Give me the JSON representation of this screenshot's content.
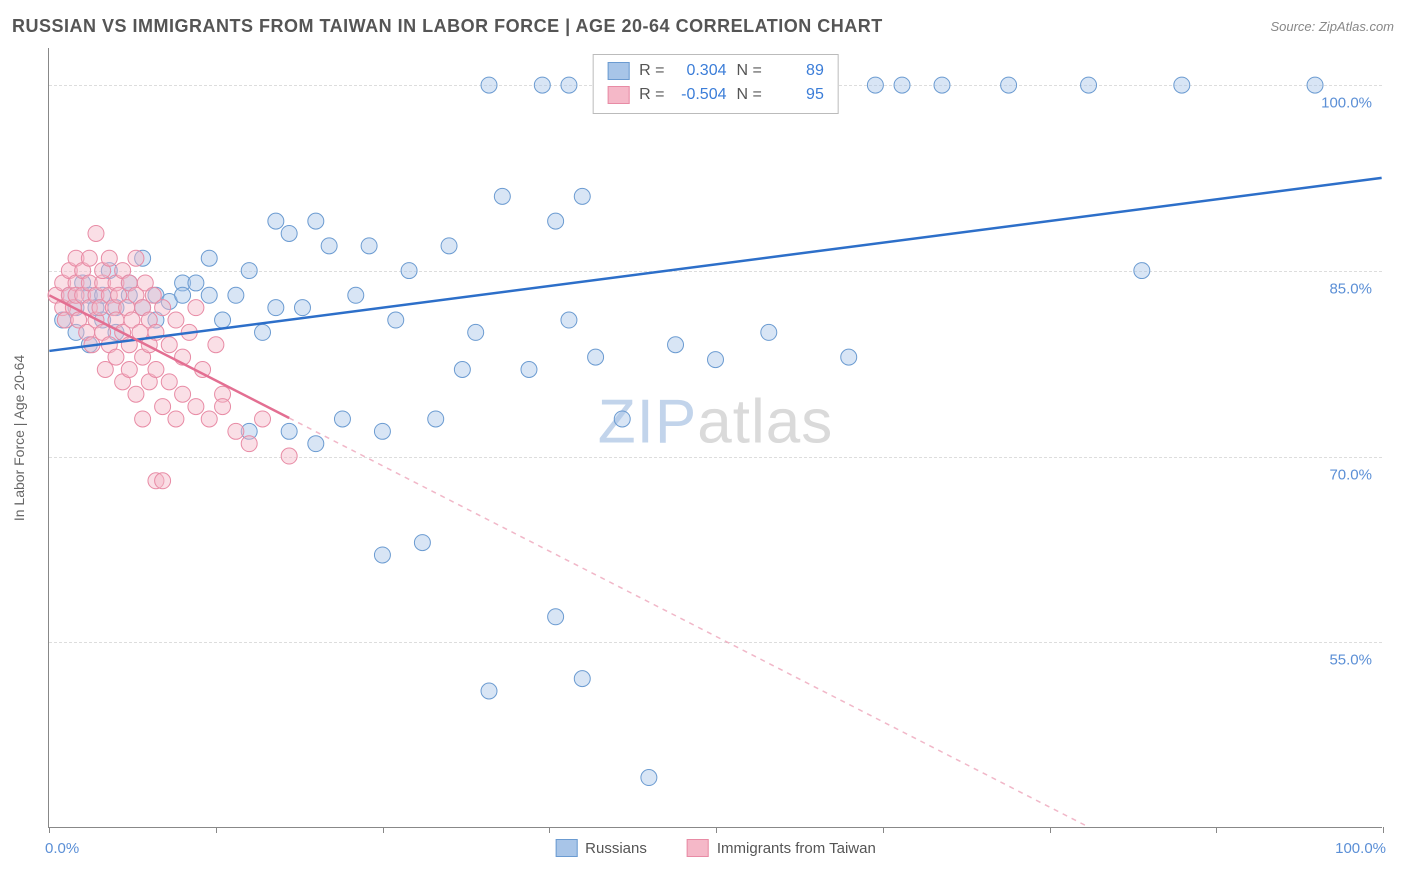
{
  "title": "RUSSIAN VS IMMIGRANTS FROM TAIWAN IN LABOR FORCE | AGE 20-64 CORRELATION CHART",
  "source": "Source: ZipAtlas.com",
  "watermark_zip": "ZIP",
  "watermark_atlas": "atlas",
  "y_axis_title": "In Labor Force | Age 20-64",
  "chart": {
    "type": "scatter-with-regression",
    "background_color": "#ffffff",
    "grid_color": "#dddddd",
    "axis_color": "#888888",
    "xlim": [
      0,
      100
    ],
    "ylim": [
      40,
      103
    ],
    "x_ticks": [
      0,
      12.5,
      25,
      37.5,
      50,
      62.5,
      75,
      87.5,
      100
    ],
    "x_tick_labels_shown": {
      "0": "0.0%",
      "100": "100.0%"
    },
    "y_gridlines": [
      55,
      70,
      85,
      100
    ],
    "y_tick_labels": {
      "55": "55.0%",
      "70": "70.0%",
      "85": "85.0%",
      "100": "100.0%"
    },
    "marker_radius": 8,
    "marker_opacity": 0.45,
    "line_width": 2.5,
    "series": [
      {
        "name": "Russians",
        "color_fill": "#a8c5e8",
        "color_stroke": "#6b9bd1",
        "line_color": "#2d6fc9",
        "R": "0.304",
        "N": "89",
        "regression": {
          "x1": 0,
          "y1": 78.5,
          "x2": 100,
          "y2": 92.5,
          "solid_until_x": 100
        },
        "points": [
          [
            1,
            81
          ],
          [
            1.5,
            83
          ],
          [
            2,
            82
          ],
          [
            2,
            80
          ],
          [
            2.5,
            84
          ],
          [
            3,
            83
          ],
          [
            3,
            79
          ],
          [
            3.5,
            82
          ],
          [
            4,
            83
          ],
          [
            4,
            81
          ],
          [
            4.5,
            85
          ],
          [
            5,
            82
          ],
          [
            5,
            80
          ],
          [
            6,
            83
          ],
          [
            6,
            84
          ],
          [
            7,
            82
          ],
          [
            7,
            86
          ],
          [
            8,
            83
          ],
          [
            8,
            81
          ],
          [
            9,
            82.5
          ],
          [
            10,
            84
          ],
          [
            10,
            83
          ],
          [
            11,
            84
          ],
          [
            12,
            83
          ],
          [
            12,
            86
          ],
          [
            13,
            81
          ],
          [
            14,
            83
          ],
          [
            15,
            85
          ],
          [
            15,
            72
          ],
          [
            16,
            80
          ],
          [
            17,
            89
          ],
          [
            17,
            82
          ],
          [
            18,
            88
          ],
          [
            18,
            72
          ],
          [
            19,
            82
          ],
          [
            20,
            89
          ],
          [
            20,
            71
          ],
          [
            21,
            87
          ],
          [
            22,
            73
          ],
          [
            23,
            83
          ],
          [
            24,
            87
          ],
          [
            25,
            62
          ],
          [
            25,
            72
          ],
          [
            26,
            81
          ],
          [
            27,
            85
          ],
          [
            28,
            63
          ],
          [
            29,
            73
          ],
          [
            30,
            87
          ],
          [
            31,
            77
          ],
          [
            32,
            80
          ],
          [
            33,
            100
          ],
          [
            33,
            51
          ],
          [
            34,
            91
          ],
          [
            36,
            77
          ],
          [
            37,
            100
          ],
          [
            38,
            89
          ],
          [
            38,
            57
          ],
          [
            39,
            81
          ],
          [
            39,
            100
          ],
          [
            40,
            91
          ],
          [
            40,
            52
          ],
          [
            41,
            78
          ],
          [
            43,
            73
          ],
          [
            45,
            100
          ],
          [
            45,
            44
          ],
          [
            47,
            79
          ],
          [
            49,
            100
          ],
          [
            50,
            77.8
          ],
          [
            52,
            100
          ],
          [
            54,
            80
          ],
          [
            55,
            100
          ],
          [
            57,
            100
          ],
          [
            58,
            100
          ],
          [
            60,
            78
          ],
          [
            62,
            100
          ],
          [
            64,
            100
          ],
          [
            67,
            100
          ],
          [
            72,
            100
          ],
          [
            78,
            100
          ],
          [
            82,
            85
          ],
          [
            85,
            100
          ],
          [
            95,
            100
          ]
        ]
      },
      {
        "name": "Immigrants from Taiwan",
        "color_fill": "#f5b8c8",
        "color_stroke": "#e88ba5",
        "line_color": "#e36f92",
        "R": "-0.504",
        "N": "95",
        "regression": {
          "x1": 0,
          "y1": 83,
          "x2": 78,
          "y2": 40,
          "solid_until_x": 18
        },
        "points": [
          [
            0.5,
            83
          ],
          [
            1,
            82
          ],
          [
            1,
            84
          ],
          [
            1.2,
            81
          ],
          [
            1.5,
            83
          ],
          [
            1.5,
            85
          ],
          [
            1.8,
            82
          ],
          [
            2,
            84
          ],
          [
            2,
            83
          ],
          [
            2,
            86
          ],
          [
            2.2,
            81
          ],
          [
            2.5,
            83
          ],
          [
            2.5,
            85
          ],
          [
            2.8,
            80
          ],
          [
            3,
            82
          ],
          [
            3,
            84
          ],
          [
            3,
            86
          ],
          [
            3.2,
            79
          ],
          [
            3.5,
            83
          ],
          [
            3.5,
            81
          ],
          [
            3.5,
            88
          ],
          [
            3.8,
            82
          ],
          [
            4,
            84
          ],
          [
            4,
            80
          ],
          [
            4,
            85
          ],
          [
            4.2,
            77
          ],
          [
            4.5,
            83
          ],
          [
            4.5,
            86
          ],
          [
            4.5,
            79
          ],
          [
            4.8,
            82
          ],
          [
            5,
            84
          ],
          [
            5,
            78
          ],
          [
            5,
            81
          ],
          [
            5.2,
            83
          ],
          [
            5.5,
            80
          ],
          [
            5.5,
            85
          ],
          [
            5.5,
            76
          ],
          [
            5.8,
            82
          ],
          [
            6,
            79
          ],
          [
            6,
            84
          ],
          [
            6,
            77
          ],
          [
            6.2,
            81
          ],
          [
            6.5,
            83
          ],
          [
            6.5,
            75
          ],
          [
            6.5,
            86
          ],
          [
            6.8,
            80
          ],
          [
            7,
            78
          ],
          [
            7,
            82
          ],
          [
            7,
            73
          ],
          [
            7.2,
            84
          ],
          [
            7.5,
            79
          ],
          [
            7.5,
            76
          ],
          [
            7.5,
            81
          ],
          [
            7.8,
            83
          ],
          [
            8,
            77
          ],
          [
            8,
            80
          ],
          [
            8,
            68
          ],
          [
            8.5,
            82
          ],
          [
            8.5,
            74
          ],
          [
            8.5,
            68
          ],
          [
            9,
            79
          ],
          [
            9,
            76
          ],
          [
            9.5,
            81
          ],
          [
            9.5,
            73
          ],
          [
            10,
            78
          ],
          [
            10,
            75
          ],
          [
            10.5,
            80
          ],
          [
            11,
            74
          ],
          [
            11,
            82
          ],
          [
            11.5,
            77
          ],
          [
            12,
            73
          ],
          [
            12.5,
            79
          ],
          [
            13,
            75
          ],
          [
            13,
            74
          ],
          [
            14,
            72
          ],
          [
            15,
            71
          ],
          [
            16,
            73
          ],
          [
            18,
            70
          ]
        ]
      }
    ]
  },
  "legend_labels": {
    "R_prefix": "R =",
    "N_prefix": "N =",
    "series1": "Russians",
    "series2": "Immigrants from Taiwan"
  }
}
